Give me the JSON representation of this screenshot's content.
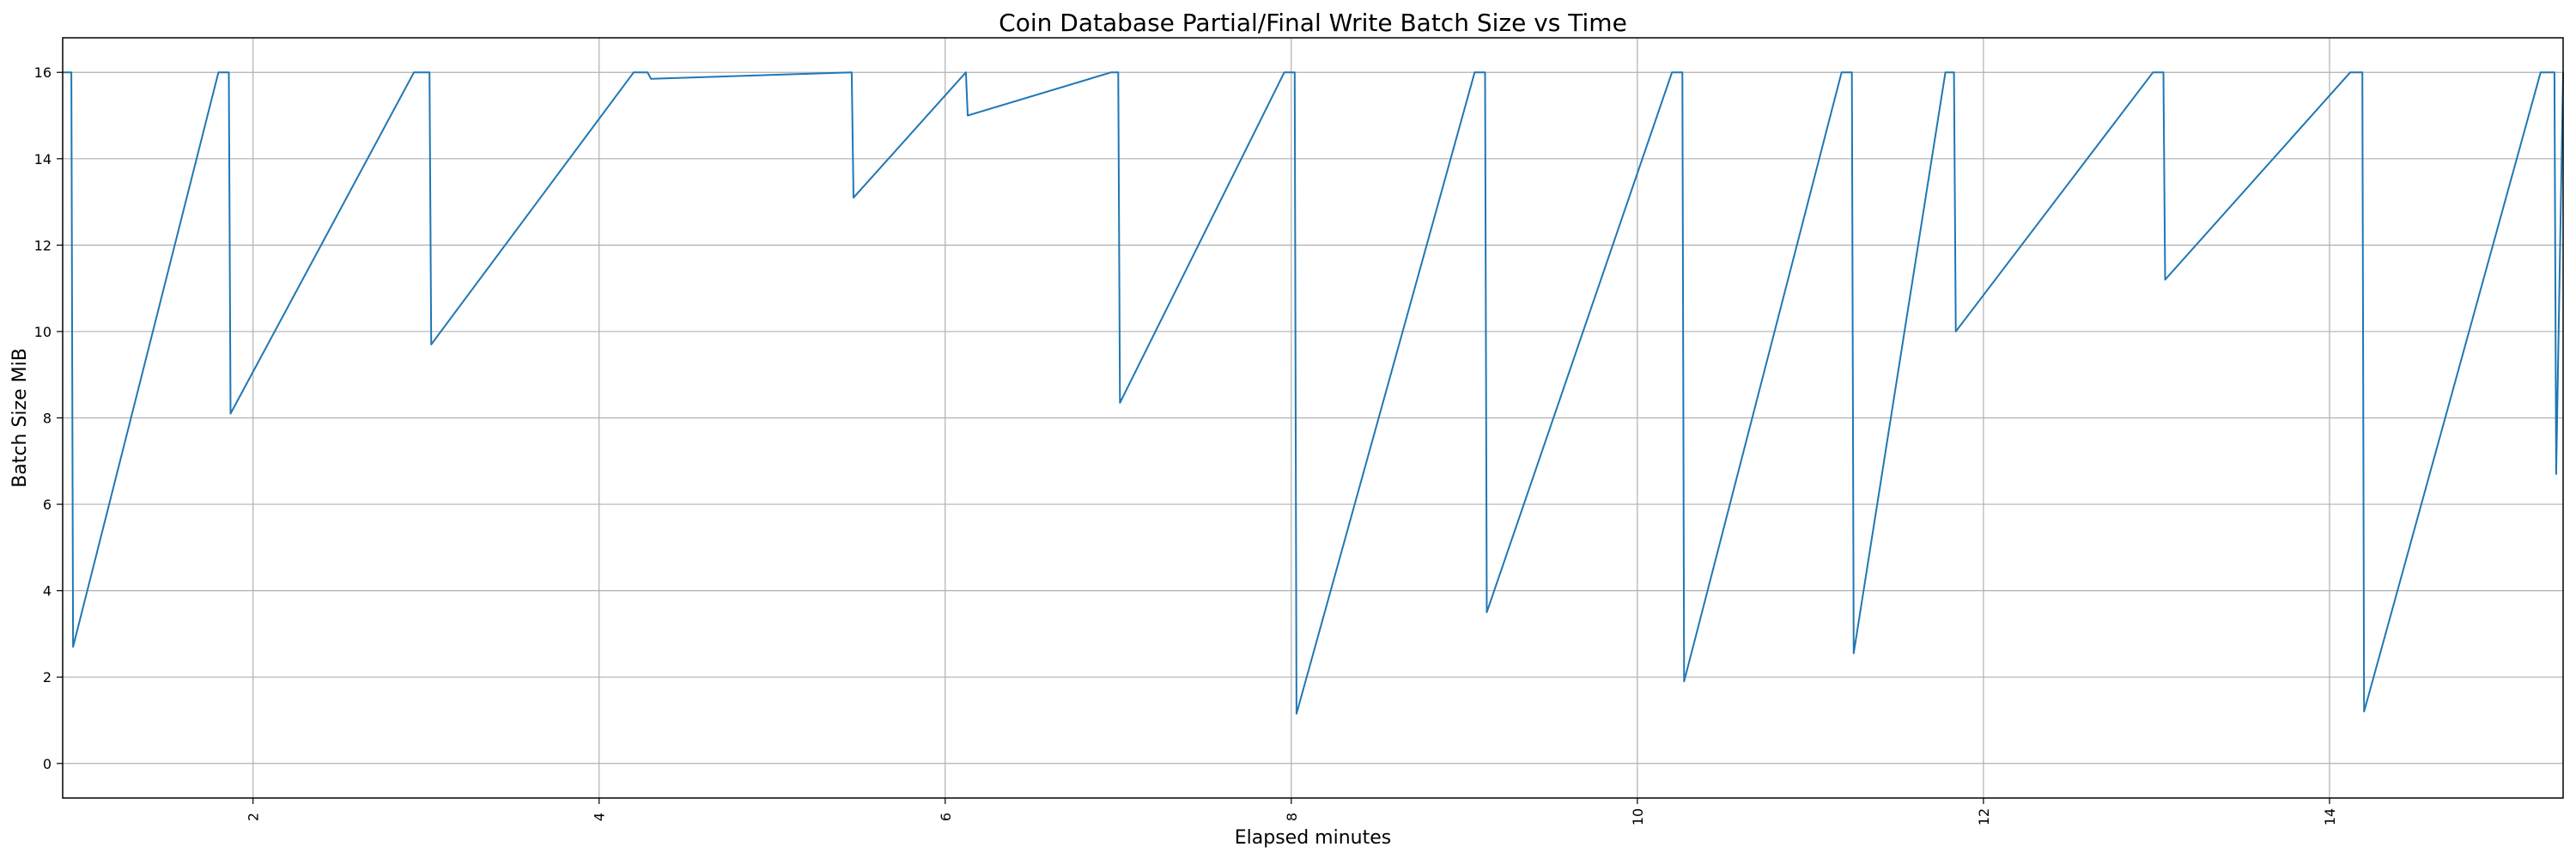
{
  "chart_data": {
    "type": "line",
    "title": "Coin Database Partial/Final Write Batch Size vs Time",
    "xlabel": "Elapsed minutes",
    "ylabel": "Batch Size MiB",
    "xlim": [
      0.9,
      15.35
    ],
    "ylim": [
      -0.8,
      16.8
    ],
    "xticks": [
      2,
      4,
      6,
      8,
      10,
      12,
      14
    ],
    "yticks": [
      0,
      2,
      4,
      6,
      8,
      10,
      12,
      14,
      16
    ],
    "grid": true,
    "colors": {
      "series": "#1f77b4"
    },
    "series": [
      {
        "x": [
          0.9,
          0.95,
          0.96,
          1.8,
          1.86,
          1.87,
          2.93,
          3.02,
          3.03,
          4.2,
          4.28,
          4.3,
          5.46,
          5.47,
          6.12,
          6.13,
          6.96,
          7.0,
          7.01,
          7.96,
          8.02,
          8.03,
          9.06,
          9.12,
          9.13,
          10.2,
          10.26,
          10.27,
          11.18,
          11.24,
          11.25,
          11.78,
          11.83,
          11.84,
          12.98,
          13.04,
          13.05,
          14.12,
          14.19,
          14.2,
          15.22,
          15.3,
          15.31,
          15.35
        ],
        "y": [
          16,
          16,
          2.7,
          16,
          16,
          8.1,
          16,
          16,
          9.7,
          16,
          16,
          15.85,
          16,
          13.1,
          16,
          15.0,
          16,
          16,
          8.35,
          16,
          16,
          1.15,
          16,
          16,
          3.5,
          16,
          16,
          1.9,
          16,
          16,
          2.55,
          16,
          16,
          10.0,
          16,
          16,
          11.2,
          16,
          16,
          1.2,
          16,
          16,
          6.7,
          16
        ]
      }
    ]
  }
}
